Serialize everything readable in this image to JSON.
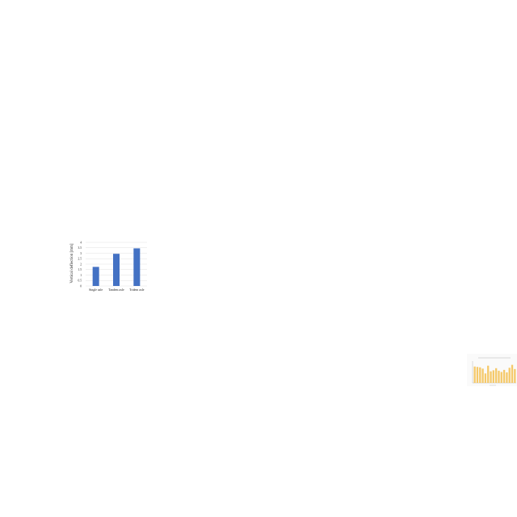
{
  "chart_data": [
    {
      "type": "bar",
      "title": "",
      "xlabel": "",
      "ylabel": "Vertical deflection [mm]",
      "categories": [
        "Single axle",
        "Tandem axle",
        "Tridem axle"
      ],
      "values": [
        1.75,
        2.95,
        3.45
      ],
      "yticks": [
        "0",
        "0.5",
        "1",
        "1.5",
        "2",
        "2.5",
        "3",
        "3.5",
        "4"
      ],
      "ylim": [
        0,
        4
      ],
      "grid": true,
      "colors": {
        "bar": "#4472c4",
        "grid": "#d9d9d9",
        "text": "#222222"
      }
    },
    {
      "type": "bar",
      "title": "",
      "xlabel": "",
      "ylabel": "",
      "categories": [
        "",
        "",
        "",
        "",
        "",
        "",
        "",
        "",
        "",
        "",
        "",
        "",
        "",
        "",
        "",
        ""
      ],
      "values": [
        0.78,
        0.76,
        0.74,
        0.68,
        0.45,
        0.82,
        0.55,
        0.6,
        0.7,
        0.58,
        0.52,
        0.62,
        0.5,
        0.72,
        0.86,
        0.66
      ],
      "ylim": [
        0,
        1
      ],
      "grid": false,
      "colors": {
        "bar": "#f5c96a",
        "axis": "#bbbbbb"
      }
    }
  ]
}
